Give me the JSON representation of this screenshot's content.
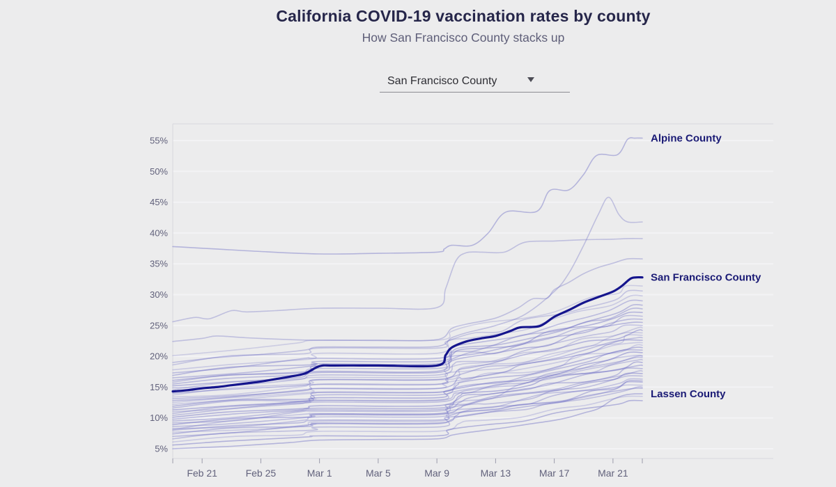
{
  "header": {
    "title": "California COVID-19 vaccination rates by county",
    "subtitle": "How San Francisco County stacks up"
  },
  "selector": {
    "value": "San Francisco County",
    "icon": "chevron-down"
  },
  "chart_data": {
    "type": "line",
    "title": "California COVID-19 vaccination rates by county",
    "subtitle": "How San Francisco County stacks up",
    "x": {
      "start_date": "Feb 19",
      "end_date": "Mar 23",
      "domain_days": [
        0,
        32
      ],
      "ticks": [
        {
          "day": 2,
          "label": "Feb 21"
        },
        {
          "day": 6,
          "label": "Feb 25"
        },
        {
          "day": 10,
          "label": "Mar 1"
        },
        {
          "day": 14,
          "label": "Mar 5"
        },
        {
          "day": 18,
          "label": "Mar 9"
        },
        {
          "day": 22,
          "label": "Mar 13"
        },
        {
          "day": 26,
          "label": "Mar 17"
        },
        {
          "day": 30,
          "label": "Mar 21"
        }
      ],
      "edge_tick_days": [
        0,
        32
      ]
    },
    "y": {
      "unit": "%",
      "ticks": [
        5,
        10,
        15,
        20,
        25,
        30,
        35,
        40,
        45,
        50,
        55
      ],
      "tick_labels": [
        "5%",
        "10%",
        "15%",
        "20%",
        "25%",
        "30%",
        "35%",
        "40%",
        "45%",
        "50%",
        "55%"
      ],
      "grid": true
    },
    "right_labels": [
      {
        "text": "Alpine County",
        "value": 55.4
      },
      {
        "text": "San Francisco County",
        "value": 32.8
      },
      {
        "text": "Lassen County",
        "value": 13.9
      }
    ],
    "series": {
      "highlight": {
        "name": "San Francisco County",
        "points": [
          [
            0,
            14.3
          ],
          [
            1,
            14.5
          ],
          [
            2,
            14.8
          ],
          [
            3,
            15.0
          ],
          [
            4,
            15.3
          ],
          [
            5,
            15.6
          ],
          [
            6,
            15.9
          ],
          [
            7,
            16.3
          ],
          [
            8,
            16.7
          ],
          [
            9,
            17.2
          ],
          [
            10,
            18.4
          ],
          [
            11,
            18.5
          ],
          [
            14,
            18.5
          ],
          [
            18,
            18.5
          ],
          [
            18.6,
            20.2
          ],
          [
            19,
            21.4
          ],
          [
            20,
            22.4
          ],
          [
            21,
            22.9
          ],
          [
            22,
            23.3
          ],
          [
            23,
            24.1
          ],
          [
            23.7,
            24.7
          ],
          [
            25,
            24.9
          ],
          [
            26,
            26.4
          ],
          [
            27,
            27.5
          ],
          [
            28,
            28.7
          ],
          [
            29,
            29.6
          ],
          [
            30,
            30.5
          ],
          [
            30.6,
            31.4
          ],
          [
            31.2,
            32.6
          ],
          [
            31.6,
            32.8
          ],
          [
            32,
            32.8
          ]
        ]
      },
      "labeled": [
        {
          "name": "Alpine County",
          "points": [
            [
              0,
              37.8
            ],
            [
              3,
              37.4
            ],
            [
              6,
              37.0
            ],
            [
              10,
              36.6
            ],
            [
              14,
              36.7
            ],
            [
              18,
              36.9
            ],
            [
              18.5,
              37.4
            ],
            [
              19,
              38.0
            ],
            [
              20.4,
              38.0
            ],
            [
              21.5,
              40.0
            ],
            [
              22.7,
              43.4
            ],
            [
              24.8,
              43.5
            ],
            [
              25.7,
              46.9
            ],
            [
              27,
              47.0
            ],
            [
              28,
              49.5
            ],
            [
              28.9,
              52.6
            ],
            [
              30.3,
              52.7
            ],
            [
              31,
              55.2
            ],
            [
              31.5,
              55.4
            ],
            [
              32,
              55.4
            ]
          ]
        },
        {
          "name": "Lassen County",
          "points": [
            [
              0,
              5.0
            ],
            [
              2,
              5.2
            ],
            [
              4,
              5.4
            ],
            [
              6,
              5.7
            ],
            [
              8,
              6.0
            ],
            [
              10,
              6.4
            ],
            [
              14,
              6.5
            ],
            [
              18,
              6.6
            ],
            [
              19,
              7.2
            ],
            [
              20,
              7.6
            ],
            [
              22,
              8.2
            ],
            [
              24,
              8.9
            ],
            [
              26,
              9.6
            ],
            [
              27,
              10.1
            ],
            [
              28,
              10.8
            ],
            [
              29,
              11.5
            ],
            [
              30,
              13.0
            ],
            [
              30.8,
              13.7
            ],
            [
              31.5,
              13.9
            ],
            [
              32,
              13.9
            ]
          ]
        }
      ],
      "featured_background": [
        {
          "points": [
            [
              0,
              25.6
            ],
            [
              1.5,
              26.3
            ],
            [
              2.5,
              26.1
            ],
            [
              4,
              27.4
            ],
            [
              5,
              27.2
            ],
            [
              7,
              27.4
            ],
            [
              10,
              27.8
            ],
            [
              14,
              27.8
            ],
            [
              18,
              27.9
            ],
            [
              18.6,
              31.0
            ],
            [
              19.3,
              35.5
            ],
            [
              20,
              36.8
            ],
            [
              21,
              36.9
            ],
            [
              22.6,
              36.9
            ],
            [
              24,
              38.5
            ],
            [
              26,
              38.7
            ],
            [
              28,
              38.9
            ],
            [
              30,
              39.0
            ],
            [
              31,
              39.1
            ],
            [
              32,
              39.1
            ]
          ]
        },
        {
          "points": [
            [
              0,
              19.0
            ],
            [
              3,
              19.8
            ],
            [
              6,
              20.3
            ],
            [
              9,
              21.0
            ],
            [
              10,
              21.5
            ],
            [
              14,
              21.5
            ],
            [
              18,
              21.6
            ],
            [
              19,
              23.0
            ],
            [
              20,
              23.8
            ],
            [
              22,
              25.0
            ],
            [
              24,
              26.8
            ],
            [
              26,
              30.5
            ],
            [
              27,
              33.5
            ],
            [
              28,
              38.0
            ],
            [
              29,
              43.0
            ],
            [
              29.7,
              45.8
            ],
            [
              30.4,
              43.0
            ],
            [
              31,
              41.8
            ],
            [
              32,
              41.8
            ]
          ]
        },
        {
          "points": [
            [
              0,
              22.4
            ],
            [
              2,
              22.9
            ],
            [
              3,
              23.3
            ],
            [
              5,
              23.0
            ],
            [
              8,
              22.7
            ],
            [
              10,
              22.6
            ],
            [
              14,
              22.6
            ],
            [
              18,
              22.7
            ],
            [
              19,
              24.5
            ],
            [
              20,
              25.2
            ],
            [
              22,
              26.2
            ],
            [
              23.5,
              27.8
            ],
            [
              24.5,
              29.3
            ],
            [
              25.5,
              29.4
            ],
            [
              26,
              30.8
            ],
            [
              27,
              32.0
            ],
            [
              28,
              33.4
            ],
            [
              29,
              34.4
            ],
            [
              30,
              35.1
            ],
            [
              31,
              35.8
            ],
            [
              32,
              35.8
            ]
          ]
        }
      ],
      "shape_fractions": [
        [
          0,
          0
        ],
        [
          4,
          0.08
        ],
        [
          9,
          0.17
        ],
        [
          10,
          0.22
        ],
        [
          18,
          0.22
        ],
        [
          19,
          0.35
        ],
        [
          20,
          0.41
        ],
        [
          22,
          0.48
        ],
        [
          24,
          0.57
        ],
        [
          26,
          0.68
        ],
        [
          28,
          0.79
        ],
        [
          30,
          0.9
        ],
        [
          31.2,
          1
        ],
        [
          32,
          1
        ]
      ],
      "background_start_end": [
        [
          20.1,
          31.4
        ],
        [
          18.6,
          30.6
        ],
        [
          17.8,
          29.8
        ],
        [
          17.3,
          29.0
        ],
        [
          16.9,
          28.3
        ],
        [
          16.5,
          27.7
        ],
        [
          16.1,
          27.1
        ],
        [
          15.8,
          26.5
        ],
        [
          15.5,
          26.0
        ],
        [
          15.2,
          25.5
        ],
        [
          14.9,
          25.0
        ],
        [
          14.6,
          24.6
        ],
        [
          14.0,
          24.2
        ],
        [
          13.7,
          23.8
        ],
        [
          13.4,
          23.4
        ],
        [
          13.1,
          23.0
        ],
        [
          12.8,
          22.6
        ],
        [
          12.5,
          22.2
        ],
        [
          12.2,
          21.8
        ],
        [
          11.9,
          21.4
        ],
        [
          11.6,
          21.0
        ],
        [
          11.3,
          20.6
        ],
        [
          11.0,
          20.1
        ],
        [
          10.7,
          19.8
        ],
        [
          10.4,
          19.4
        ],
        [
          10.1,
          19.0
        ],
        [
          9.8,
          18.5
        ],
        [
          9.5,
          18.0
        ],
        [
          9.2,
          17.6
        ],
        [
          8.9,
          17.2
        ],
        [
          8.6,
          16.8
        ],
        [
          8.3,
          16.3
        ],
        [
          8.0,
          15.8
        ],
        [
          7.7,
          15.3
        ],
        [
          7.4,
          14.8
        ],
        [
          7.0,
          16.0
        ],
        [
          6.6,
          15.0
        ],
        [
          6.1,
          13.5
        ],
        [
          5.6,
          12.8
        ],
        [
          8.1,
          20.0
        ]
      ]
    },
    "colors": {
      "background": "#ececed",
      "gridline": "#f3f3f5",
      "border": "#d8d8dd",
      "axis_text": "#61617b",
      "tick_mark": "#9b9bab",
      "county_line": "rgba(112,112,198,0.36)",
      "highlight_line": "#15158d",
      "label_text": "#1a1a75"
    },
    "legend": false
  }
}
